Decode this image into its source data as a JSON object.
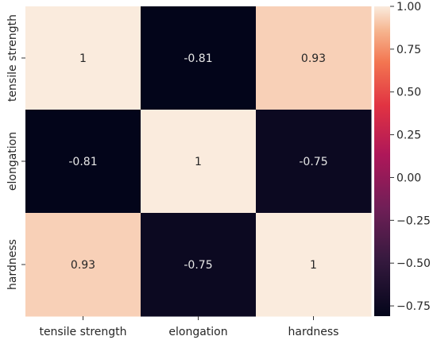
{
  "chart_data": {
    "type": "heatmap",
    "x_labels": [
      "tensile strength",
      "elongation",
      "hardness"
    ],
    "y_labels": [
      "tensile strength",
      "elongation",
      "hardness"
    ],
    "values": [
      [
        1,
        -0.81,
        0.93
      ],
      [
        -0.81,
        1,
        -0.75
      ],
      [
        0.93,
        -0.75,
        1
      ]
    ],
    "annotations": [
      [
        "1",
        "-0.81",
        "0.93"
      ],
      [
        "-0.81",
        "1",
        "-0.75"
      ],
      [
        "0.93",
        "-0.75",
        "1"
      ]
    ],
    "colormap": "rocket",
    "colorbar": {
      "vmin": -0.81,
      "vmax": 1.0,
      "ticks": [
        1.0,
        0.75,
        0.5,
        0.25,
        0.0,
        -0.25,
        -0.5,
        -0.75
      ],
      "tick_labels": [
        "1.00",
        "0.75",
        "0.50",
        "0.25",
        "0.00",
        "−0.25",
        "−0.50",
        "−0.75"
      ]
    },
    "grid": false,
    "legend": "colorbar-right"
  }
}
